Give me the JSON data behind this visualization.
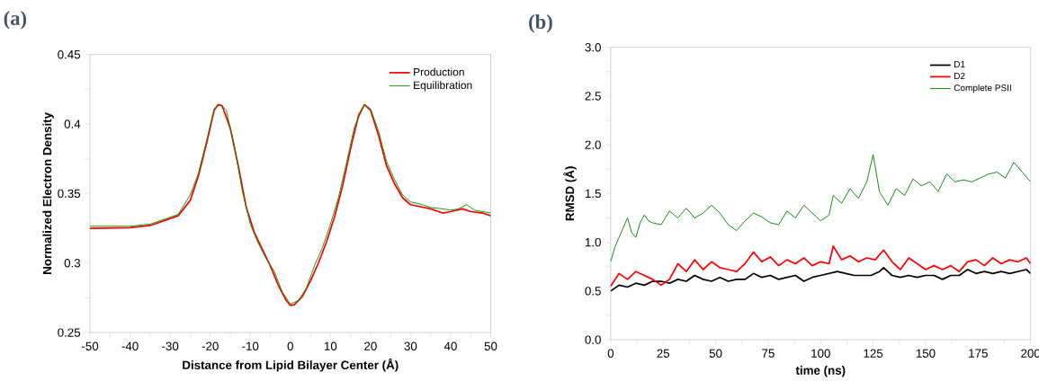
{
  "chart_data": [
    {
      "type": "line",
      "title": "(a)",
      "xlabel": "Distance from Lipid Bilayer Center (Å)",
      "ylabel": "Normalized Electron Density",
      "xlim": [
        -50,
        50
      ],
      "ylim": [
        0.25,
        0.45
      ],
      "xticks": [
        -50,
        {
          "value": -45,
          "label": null
        },
        -40,
        {
          "value": -35,
          "label": null
        },
        -30,
        {
          "value": -25,
          "label": null
        },
        -20,
        {
          "value": -15,
          "label": null
        },
        -10,
        {
          "value": -5,
          "label": null
        },
        0,
        {
          "value": 5,
          "label": null
        },
        10,
        {
          "value": 15,
          "label": null
        },
        20,
        {
          "value": 25,
          "label": null
        },
        30,
        {
          "value": 35,
          "label": null
        },
        40,
        {
          "value": 45,
          "label": null
        },
        50
      ],
      "yticks": [
        0.25,
        {
          "value": 0.275,
          "label": null
        },
        0.3,
        {
          "value": 0.325,
          "label": null
        },
        0.35,
        {
          "value": 0.375,
          "label": null
        },
        0.4,
        {
          "value": 0.425,
          "label": null
        },
        0.45
      ],
      "legend": "top right",
      "grid": false,
      "marker": "none",
      "series": [
        {
          "name": "Production",
          "color": "#ff0000",
          "x": [
            -50,
            -40,
            -35,
            -32,
            -28,
            -25,
            -23,
            -21,
            -19,
            -18,
            -17,
            -15,
            -13,
            -11,
            -9,
            -7,
            -5,
            -3,
            -1,
            0,
            1,
            3,
            5,
            7,
            9,
            11,
            13,
            15,
            17,
            18.5,
            20,
            22,
            24,
            26,
            28,
            30,
            35,
            38,
            40,
            43,
            45,
            48,
            50
          ],
          "values": [
            0.325,
            0.3255,
            0.327,
            0.33,
            0.334,
            0.345,
            0.362,
            0.385,
            0.41,
            0.414,
            0.413,
            0.397,
            0.37,
            0.34,
            0.322,
            0.31,
            0.298,
            0.284,
            0.273,
            0.2695,
            0.27,
            0.276,
            0.287,
            0.3,
            0.315,
            0.333,
            0.355,
            0.382,
            0.406,
            0.414,
            0.41,
            0.392,
            0.37,
            0.357,
            0.347,
            0.342,
            0.339,
            0.336,
            0.337,
            0.339,
            0.337,
            0.336,
            0.334
          ]
        },
        {
          "name": "Equilibration",
          "color": "#009900",
          "x": [
            -50,
            -40,
            -35,
            -32,
            -28,
            -25,
            -23,
            -21,
            -19,
            -17.5,
            -16,
            -14,
            -12,
            -10,
            -8,
            -6,
            -4,
            -2,
            0,
            2,
            4,
            6,
            8,
            10,
            12,
            14,
            16,
            18.5,
            20,
            22,
            24,
            26,
            28,
            30,
            33,
            35,
            38,
            40,
            42,
            44,
            46,
            48,
            50
          ],
          "values": [
            0.3265,
            0.3265,
            0.328,
            0.331,
            0.335,
            0.349,
            0.364,
            0.387,
            0.411,
            0.414,
            0.41,
            0.385,
            0.352,
            0.328,
            0.314,
            0.303,
            0.294,
            0.279,
            0.2705,
            0.273,
            0.282,
            0.298,
            0.311,
            0.328,
            0.347,
            0.372,
            0.398,
            0.414,
            0.411,
            0.395,
            0.373,
            0.36,
            0.349,
            0.344,
            0.342,
            0.34,
            0.339,
            0.338,
            0.339,
            0.342,
            0.338,
            0.337,
            0.336
          ]
        }
      ]
    },
    {
      "type": "line",
      "title": "(b)",
      "xlabel": "time (ns)",
      "ylabel": "RMSD (Å)",
      "xlim": [
        0,
        200
      ],
      "ylim": [
        0,
        3
      ],
      "xticks": [
        0,
        {
          "value": 12.5,
          "label": null
        },
        25,
        {
          "value": 37.5,
          "label": null
        },
        50,
        {
          "value": 62.5,
          "label": null
        },
        75,
        {
          "value": 87.5,
          "label": null
        },
        100,
        {
          "value": 112.5,
          "label": null
        },
        125,
        {
          "value": 137.5,
          "label": null
        },
        150,
        {
          "value": 162.5,
          "label": null
        },
        175,
        {
          "value": 187.5,
          "label": null
        },
        200
      ],
      "yticks": [
        {
          "value": 0,
          "label": "0.0"
        },
        {
          "value": 0.25,
          "label": null
        },
        0.5,
        {
          "value": 0.75,
          "label": null
        },
        {
          "value": 1,
          "label": "1.0"
        },
        {
          "value": 1.25,
          "label": null
        },
        1.5,
        {
          "value": 1.75,
          "label": null
        },
        {
          "value": 2,
          "label": "2.0"
        },
        {
          "value": 2.25,
          "label": null
        },
        2.5,
        {
          "value": 2.75,
          "label": null
        },
        {
          "value": 3,
          "label": "3.0"
        }
      ],
      "legend": "top right",
      "grid": false,
      "marker": "none",
      "series": [
        {
          "name": "D1",
          "color": "#000000",
          "x": [
            0,
            4,
            8,
            12,
            16,
            20,
            24,
            28,
            32,
            36,
            40,
            44,
            48,
            52,
            56,
            60,
            64,
            68,
            72,
            76,
            80,
            84,
            88,
            92,
            96,
            100,
            104,
            108,
            112,
            116,
            120,
            124,
            128,
            130,
            134,
            138,
            142,
            146,
            150,
            154,
            158,
            162,
            166,
            170,
            174,
            178,
            182,
            186,
            190,
            194,
            198,
            200
          ],
          "values": [
            0.5,
            0.56,
            0.54,
            0.58,
            0.56,
            0.6,
            0.6,
            0.58,
            0.62,
            0.6,
            0.66,
            0.62,
            0.6,
            0.64,
            0.6,
            0.62,
            0.62,
            0.68,
            0.64,
            0.66,
            0.62,
            0.64,
            0.66,
            0.6,
            0.64,
            0.66,
            0.68,
            0.7,
            0.68,
            0.66,
            0.66,
            0.66,
            0.7,
            0.74,
            0.66,
            0.64,
            0.66,
            0.64,
            0.66,
            0.66,
            0.62,
            0.66,
            0.66,
            0.72,
            0.68,
            0.7,
            0.68,
            0.7,
            0.68,
            0.7,
            0.72,
            0.68
          ]
        },
        {
          "name": "D2",
          "color": "#ff0000",
          "x": [
            0,
            4,
            8,
            12,
            16,
            20,
            24,
            28,
            32,
            36,
            40,
            44,
            48,
            52,
            56,
            60,
            64,
            68,
            72,
            76,
            80,
            84,
            88,
            92,
            96,
            100,
            104,
            106,
            110,
            114,
            118,
            122,
            126,
            130,
            134,
            138,
            142,
            146,
            150,
            154,
            158,
            162,
            166,
            170,
            174,
            178,
            182,
            186,
            190,
            194,
            198,
            200
          ],
          "values": [
            0.55,
            0.68,
            0.62,
            0.7,
            0.66,
            0.62,
            0.56,
            0.62,
            0.78,
            0.7,
            0.82,
            0.72,
            0.8,
            0.74,
            0.72,
            0.7,
            0.78,
            0.9,
            0.8,
            0.85,
            0.76,
            0.82,
            0.78,
            0.84,
            0.76,
            0.8,
            0.78,
            0.96,
            0.82,
            0.86,
            0.8,
            0.84,
            0.82,
            0.92,
            0.8,
            0.72,
            0.84,
            0.78,
            0.72,
            0.76,
            0.72,
            0.76,
            0.7,
            0.8,
            0.82,
            0.76,
            0.84,
            0.78,
            0.82,
            0.8,
            0.84,
            0.78
          ]
        },
        {
          "name": "Complete PSII",
          "color": "#008800",
          "x": [
            0,
            2,
            4,
            6,
            8,
            10,
            12,
            14,
            16,
            18,
            20,
            24,
            28,
            32,
            36,
            40,
            44,
            48,
            52,
            56,
            60,
            64,
            68,
            72,
            76,
            80,
            84,
            88,
            92,
            96,
            100,
            104,
            106,
            110,
            114,
            118,
            122,
            125,
            128,
            132,
            136,
            140,
            144,
            148,
            152,
            156,
            160,
            164,
            168,
            172,
            176,
            180,
            184,
            188,
            192,
            196,
            200
          ],
          "values": [
            0.8,
            0.95,
            1.05,
            1.15,
            1.25,
            1.1,
            1.05,
            1.2,
            1.28,
            1.22,
            1.2,
            1.18,
            1.32,
            1.25,
            1.35,
            1.25,
            1.3,
            1.38,
            1.3,
            1.18,
            1.12,
            1.22,
            1.3,
            1.26,
            1.2,
            1.18,
            1.32,
            1.25,
            1.38,
            1.3,
            1.22,
            1.28,
            1.48,
            1.4,
            1.55,
            1.45,
            1.62,
            1.9,
            1.52,
            1.38,
            1.55,
            1.48,
            1.65,
            1.58,
            1.62,
            1.52,
            1.7,
            1.62,
            1.64,
            1.62,
            1.66,
            1.7,
            1.72,
            1.66,
            1.82,
            1.72,
            1.62
          ]
        }
      ]
    }
  ]
}
